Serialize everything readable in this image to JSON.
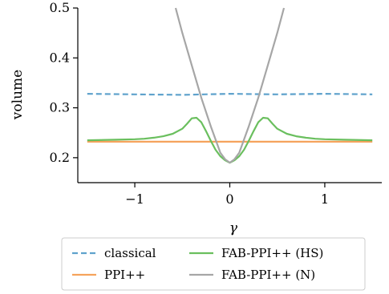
{
  "chart_data": {
    "type": "line",
    "xlabel": "γ",
    "ylabel": "volume",
    "xlim": [
      -1.6,
      1.6
    ],
    "ylim": [
      0.15,
      0.5
    ],
    "xticks": [
      -1,
      0,
      1
    ],
    "xtick_labels": [
      "−1",
      "0",
      "1"
    ],
    "yticks": [
      0.2,
      0.3,
      0.4,
      0.5
    ],
    "ytick_labels": [
      "0.2",
      "0.3",
      "0.4",
      "0.5"
    ],
    "grid": false,
    "legend_placement": "below",
    "series": [
      {
        "name": "classical",
        "color": "#5fa2cc",
        "dash": "dashed",
        "x": [
          -1.5,
          -1.0,
          -0.5,
          0.0,
          0.5,
          1.0,
          1.5
        ],
        "y": [
          0.328,
          0.327,
          0.326,
          0.328,
          0.327,
          0.328,
          0.327
        ]
      },
      {
        "name": "PPI++",
        "color": "#f5a35c",
        "dash": "solid",
        "x": [
          -1.5,
          -1.0,
          -0.5,
          0.0,
          0.5,
          1.0,
          1.5
        ],
        "y": [
          0.232,
          0.232,
          0.232,
          0.232,
          0.232,
          0.232,
          0.232
        ]
      },
      {
        "name": "FAB-PPI++ (HS)",
        "color": "#6abf5e",
        "dash": "solid",
        "x": [
          -1.5,
          -1.2,
          -1.0,
          -0.9,
          -0.8,
          -0.7,
          -0.6,
          -0.5,
          -0.45,
          -0.4,
          -0.35,
          -0.3,
          -0.25,
          -0.2,
          -0.15,
          -0.1,
          -0.05,
          0.0,
          0.05,
          0.1,
          0.15,
          0.2,
          0.25,
          0.3,
          0.35,
          0.4,
          0.45,
          0.5,
          0.6,
          0.7,
          0.8,
          0.9,
          1.0,
          1.2,
          1.5
        ],
        "y": [
          0.235,
          0.236,
          0.237,
          0.238,
          0.24,
          0.243,
          0.248,
          0.258,
          0.268,
          0.279,
          0.28,
          0.271,
          0.253,
          0.234,
          0.216,
          0.203,
          0.195,
          0.19,
          0.195,
          0.203,
          0.216,
          0.234,
          0.253,
          0.271,
          0.28,
          0.279,
          0.268,
          0.258,
          0.248,
          0.243,
          0.24,
          0.238,
          0.237,
          0.236,
          0.235
        ]
      },
      {
        "name": "FAB-PPI++ (N)",
        "color": "#a6a6a6",
        "dash": "solid",
        "x": [
          -0.57,
          -0.5,
          -0.4,
          -0.3,
          -0.2,
          -0.1,
          -0.05,
          0.0,
          0.05,
          0.1,
          0.2,
          0.3,
          0.4,
          0.5,
          0.57
        ],
        "y": [
          0.5,
          0.45,
          0.385,
          0.32,
          0.263,
          0.21,
          0.197,
          0.19,
          0.197,
          0.21,
          0.263,
          0.32,
          0.385,
          0.45,
          0.5
        ]
      }
    ]
  }
}
